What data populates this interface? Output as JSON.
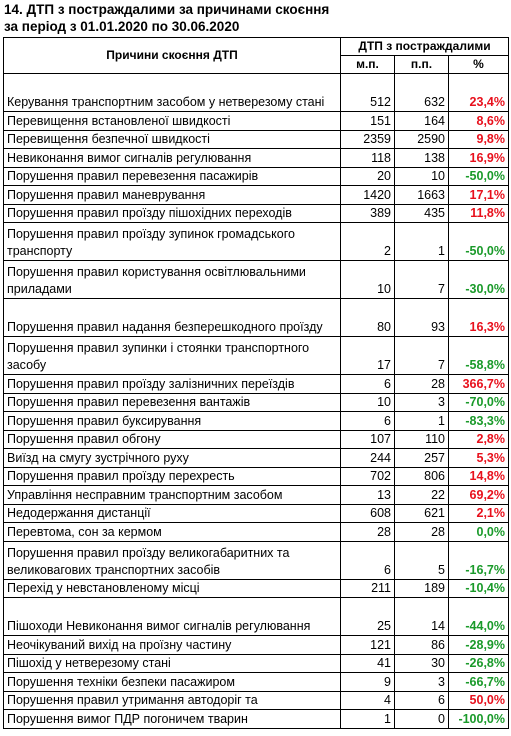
{
  "title_line1": "14. ДТП з постраждалими за причинами скоєння",
  "title_line2": "за період з 01.01.2020 по 30.06.2020",
  "header": {
    "cause_col": "Причини скоєння ДТП",
    "group": "ДТП з постраждалими",
    "mp": "м.п.",
    "pp": "п.п.",
    "pct": "%"
  },
  "colors": {
    "positive": "#e8101c",
    "negative": "#1a9a2a"
  },
  "rows": [
    {
      "cause": "Керування транспортним засобом у нетверезому стані",
      "mp": "512",
      "pp": "632",
      "pct": "23,4%",
      "trend": "pos",
      "lines": 2
    },
    {
      "cause": "Перевищення встановленої швидкості",
      "mp": "151",
      "pp": "164",
      "pct": "8,6%",
      "trend": "pos",
      "lines": 1
    },
    {
      "cause": "Перевищення безпечної швидкості",
      "mp": "2359",
      "pp": "2590",
      "pct": "9,8%",
      "trend": "pos",
      "lines": 1
    },
    {
      "cause": "Невиконання вимог сигналів регулювання",
      "mp": "118",
      "pp": "138",
      "pct": "16,9%",
      "trend": "pos",
      "lines": 1
    },
    {
      "cause": "Порушення правил перевезення пасажирів",
      "mp": "20",
      "pp": "10",
      "pct": "-50,0%",
      "trend": "neg",
      "lines": 1
    },
    {
      "cause": "Порушення правил маневрування",
      "mp": "1420",
      "pp": "1663",
      "pct": "17,1%",
      "trend": "pos",
      "lines": 1
    },
    {
      "cause": "Порушення правил проїзду пішохідних переходів",
      "mp": "389",
      "pp": "435",
      "pct": "11,8%",
      "trend": "pos",
      "lines": 1
    },
    {
      "cause": "Порушення правил проїзду зупинок громадського транспорту",
      "mp": "2",
      "pp": "1",
      "pct": "-50,0%",
      "trend": "neg",
      "lines": 2
    },
    {
      "cause": "Порушення правил користування освітлювальними приладами",
      "mp": "10",
      "pp": "7",
      "pct": "-30,0%",
      "trend": "neg",
      "lines": 2
    },
    {
      "cause": "Порушення правил надання безперешкодного проїзду",
      "mp": "80",
      "pp": "93",
      "pct": "16,3%",
      "trend": "pos",
      "lines": 2
    },
    {
      "cause": "Порушення правил зупинки і стоянки транспортного засобу",
      "mp": "17",
      "pp": "7",
      "pct": "-58,8%",
      "trend": "neg",
      "lines": 2
    },
    {
      "cause": "Порушення правил проїзду залізничних переїздів",
      "mp": "6",
      "pp": "28",
      "pct": "366,7%",
      "trend": "pos",
      "lines": 1
    },
    {
      "cause": "Порушення правил перевезення вантажів",
      "mp": "10",
      "pp": "3",
      "pct": "-70,0%",
      "trend": "neg",
      "lines": 1
    },
    {
      "cause": "Порушення правил буксирування",
      "mp": "6",
      "pp": "1",
      "pct": "-83,3%",
      "trend": "neg",
      "lines": 1
    },
    {
      "cause": "Порушення правил обгону",
      "mp": "107",
      "pp": "110",
      "pct": "2,8%",
      "trend": "pos",
      "lines": 1
    },
    {
      "cause": "Виїзд на смугу зустрічного руху",
      "mp": "244",
      "pp": "257",
      "pct": "5,3%",
      "trend": "pos",
      "lines": 1
    },
    {
      "cause": "Порушення правил проїзду перехресть",
      "mp": "702",
      "pp": "806",
      "pct": "14,8%",
      "trend": "pos",
      "lines": 1
    },
    {
      "cause": "Управління несправним транспортним засобом",
      "mp": "13",
      "pp": "22",
      "pct": "69,2%",
      "trend": "pos",
      "lines": 1
    },
    {
      "cause": "Недодержання дистанції",
      "mp": "608",
      "pp": "621",
      "pct": "2,1%",
      "trend": "pos",
      "lines": 1
    },
    {
      "cause": "Перевтома, сон за кермом",
      "mp": "28",
      "pp": "28",
      "pct": "0,0%",
      "trend": "zero",
      "lines": 1
    },
    {
      "cause": "Порушення правил проїзду великогабаритних та великовагових транспортних засобів",
      "mp": "6",
      "pp": "5",
      "pct": "-16,7%",
      "trend": "neg",
      "lines": 2
    },
    {
      "cause": "Перехід у невстановленому місці",
      "mp": "211",
      "pp": "189",
      "pct": "-10,4%",
      "trend": "neg",
      "lines": 1
    },
    {
      "cause": "Пішоходи Невиконання вимог сигналів регулювання",
      "mp": "25",
      "pp": "14",
      "pct": "-44,0%",
      "trend": "neg",
      "lines": 2
    },
    {
      "cause": "Неочікуваний вихід на проїзну частину",
      "mp": "121",
      "pp": "86",
      "pct": "-28,9%",
      "trend": "neg",
      "lines": 1
    },
    {
      "cause": "Пішохід у нетверезому стані",
      "mp": "41",
      "pp": "30",
      "pct": "-26,8%",
      "trend": "neg",
      "lines": 1
    },
    {
      "cause": "Порушення техніки безпеки пасажиром",
      "mp": "9",
      "pp": "3",
      "pct": "-66,7%",
      "trend": "neg",
      "lines": 1
    },
    {
      "cause": "Порушення правил утримання автодоріг та",
      "mp": "4",
      "pp": "6",
      "pct": "50,0%",
      "trend": "pos",
      "lines": 1
    },
    {
      "cause": "Порушення вимог ПДР погоничем тварин",
      "mp": "1",
      "pp": "0",
      "pct": "-100,0%",
      "trend": "neg",
      "lines": 1
    }
  ]
}
